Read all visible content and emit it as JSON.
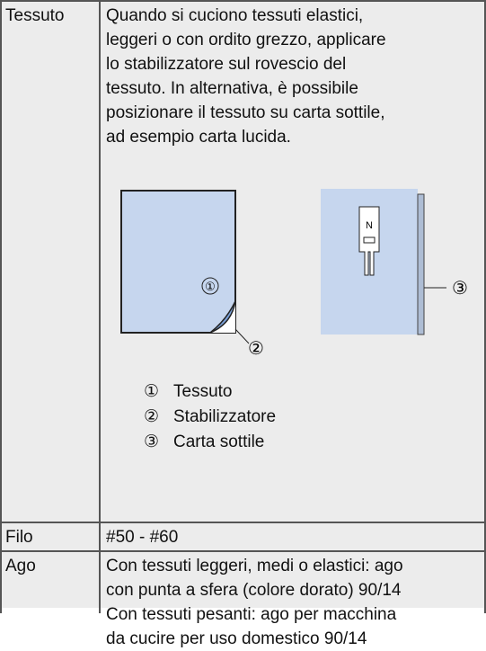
{
  "table": {
    "rows": [
      {
        "label": "Tessuto",
        "lines": [
          "Quando si cuciono tessuti elastici,",
          "leggeri o con ordito grezzo, applicare",
          "lo stabilizzatore sul rovescio del",
          "tessuto. In alternativa, è possibile",
          "posizionare il tessuto su carta sottile,",
          "ad esempio carta lucida."
        ],
        "illustration": {
          "callouts": [
            "①",
            "②",
            "③"
          ],
          "foot_letter": "N"
        },
        "legend": [
          {
            "marker": "①",
            "text": "Tessuto"
          },
          {
            "marker": "②",
            "text": "Stabilizzatore"
          },
          {
            "marker": "③",
            "text": "Carta sottile"
          }
        ]
      },
      {
        "label": "Filo",
        "lines": [
          "#50 - #60"
        ]
      },
      {
        "label": "Ago",
        "lines": [
          "Con tessuti leggeri, medi o elastici: ago",
          "con punta a sfera (colore dorato) 90/14",
          "Con tessuti pesanti: ago per macchina",
          "da cucire per uso domestico 90/14"
        ]
      }
    ]
  }
}
